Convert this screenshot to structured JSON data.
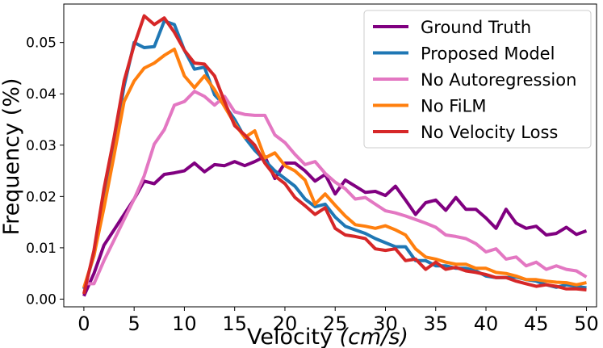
{
  "chart_data": {
    "type": "line",
    "title": "",
    "xlabel": "Velocity (cm/s)",
    "xlabel_main": "Velocity ",
    "xlabel_unit": "(cm/s)",
    "ylabel": "Frequency (%)",
    "xlim": [
      -2,
      51
    ],
    "ylim": [
      -0.0015,
      0.0575
    ],
    "xticks": [
      0,
      5,
      10,
      15,
      20,
      25,
      30,
      35,
      40,
      45,
      50
    ],
    "xtick_labels": [
      "0",
      "5",
      "10",
      "15",
      "20",
      "25",
      "30",
      "35",
      "40",
      "45",
      "50"
    ],
    "yticks": [
      0.0,
      0.01,
      0.02,
      0.03,
      0.04,
      0.05
    ],
    "ytick_labels": [
      "0.00",
      "0.01",
      "0.02",
      "0.03",
      "0.04",
      "0.05"
    ],
    "legend_position": "top-right",
    "x": [
      0,
      1,
      2,
      3,
      4,
      5,
      6,
      7,
      8,
      9,
      10,
      11,
      12,
      13,
      14,
      15,
      16,
      17,
      18,
      19,
      20,
      21,
      22,
      23,
      24,
      25,
      26,
      27,
      28,
      29,
      30,
      31,
      32,
      33,
      34,
      35,
      36,
      37,
      38,
      39,
      40,
      41,
      42,
      43,
      44,
      45,
      46,
      47,
      48,
      49,
      50
    ],
    "series": [
      {
        "name": "Ground Truth",
        "color": "#800080",
        "values": [
          0.0006,
          0.005,
          0.0105,
          0.0135,
          0.0165,
          0.0195,
          0.023,
          0.0225,
          0.0243,
          0.0246,
          0.025,
          0.0265,
          0.0248,
          0.0262,
          0.026,
          0.0268,
          0.026,
          0.0268,
          0.0278,
          0.0235,
          0.0265,
          0.0265,
          0.025,
          0.023,
          0.0243,
          0.0205,
          0.0232,
          0.022,
          0.0208,
          0.021,
          0.0202,
          0.022,
          0.0193,
          0.0165,
          0.0188,
          0.0193,
          0.0173,
          0.0198,
          0.0175,
          0.0175,
          0.0158,
          0.0138,
          0.0175,
          0.0148,
          0.0138,
          0.0142,
          0.0125,
          0.0128,
          0.014,
          0.0126,
          0.0133
        ]
      },
      {
        "name": "Proposed Model",
        "color": "#1f77b4",
        "values": [
          0.002,
          0.0085,
          0.019,
          0.03,
          0.0415,
          0.05,
          0.049,
          0.0492,
          0.0542,
          0.0535,
          0.0485,
          0.0448,
          0.0452,
          0.0398,
          0.0378,
          0.035,
          0.0315,
          0.029,
          0.027,
          0.025,
          0.0235,
          0.022,
          0.0195,
          0.018,
          0.0185,
          0.016,
          0.0142,
          0.0135,
          0.0128,
          0.0118,
          0.011,
          0.0102,
          0.0102,
          0.0075,
          0.0075,
          0.0065,
          0.0065,
          0.006,
          0.006,
          0.0055,
          0.0045,
          0.0042,
          0.0042,
          0.0043,
          0.0038,
          0.0035,
          0.0028,
          0.0023,
          0.0028,
          0.0025,
          0.0022
        ]
      },
      {
        "name": "No Autoregression",
        "color": "#e377c2",
        "values": [
          0.003,
          0.003,
          0.0075,
          0.0115,
          0.0155,
          0.0195,
          0.024,
          0.0302,
          0.033,
          0.0378,
          0.0385,
          0.0405,
          0.0395,
          0.0378,
          0.0395,
          0.0365,
          0.036,
          0.0358,
          0.0358,
          0.032,
          0.0305,
          0.0282,
          0.0262,
          0.0268,
          0.0245,
          0.0228,
          0.0215,
          0.0195,
          0.0198,
          0.0185,
          0.0172,
          0.0168,
          0.0162,
          0.0155,
          0.0148,
          0.014,
          0.0125,
          0.0122,
          0.0118,
          0.0108,
          0.0092,
          0.0098,
          0.0078,
          0.0082,
          0.0065,
          0.0072,
          0.0058,
          0.0065,
          0.0058,
          0.0055,
          0.0043
        ]
      },
      {
        "name": "No FiLM",
        "color": "#ff7f0e",
        "values": [
          0.0022,
          0.0085,
          0.0178,
          0.028,
          0.0385,
          0.0425,
          0.045,
          0.046,
          0.0475,
          0.0487,
          0.0435,
          0.0412,
          0.0435,
          0.0408,
          0.0375,
          0.0342,
          0.0315,
          0.0328,
          0.0275,
          0.0285,
          0.026,
          0.025,
          0.0232,
          0.0185,
          0.0205,
          0.0183,
          0.0162,
          0.0145,
          0.0142,
          0.0138,
          0.0143,
          0.0135,
          0.0125,
          0.0098,
          0.0082,
          0.0078,
          0.0072,
          0.0068,
          0.0068,
          0.006,
          0.006,
          0.0052,
          0.005,
          0.0045,
          0.0038,
          0.0038,
          0.0035,
          0.0033,
          0.0032,
          0.0028,
          0.0032
        ]
      },
      {
        "name": "No Velocity Loss",
        "color": "#d62728",
        "values": [
          0.001,
          0.0095,
          0.0215,
          0.0315,
          0.0425,
          0.0495,
          0.0552,
          0.0535,
          0.0548,
          0.052,
          0.0485,
          0.046,
          0.0458,
          0.0435,
          0.0385,
          0.0338,
          0.032,
          0.03,
          0.0265,
          0.024,
          0.0225,
          0.0198,
          0.0182,
          0.0165,
          0.0178,
          0.0138,
          0.0125,
          0.0122,
          0.0118,
          0.0098,
          0.0095,
          0.0098,
          0.0075,
          0.0078,
          0.0058,
          0.0072,
          0.0058,
          0.0062,
          0.0055,
          0.0052,
          0.0048,
          0.0042,
          0.0042,
          0.0035,
          0.003,
          0.0025,
          0.0028,
          0.0025,
          0.002,
          0.002,
          0.0018
        ]
      }
    ]
  }
}
